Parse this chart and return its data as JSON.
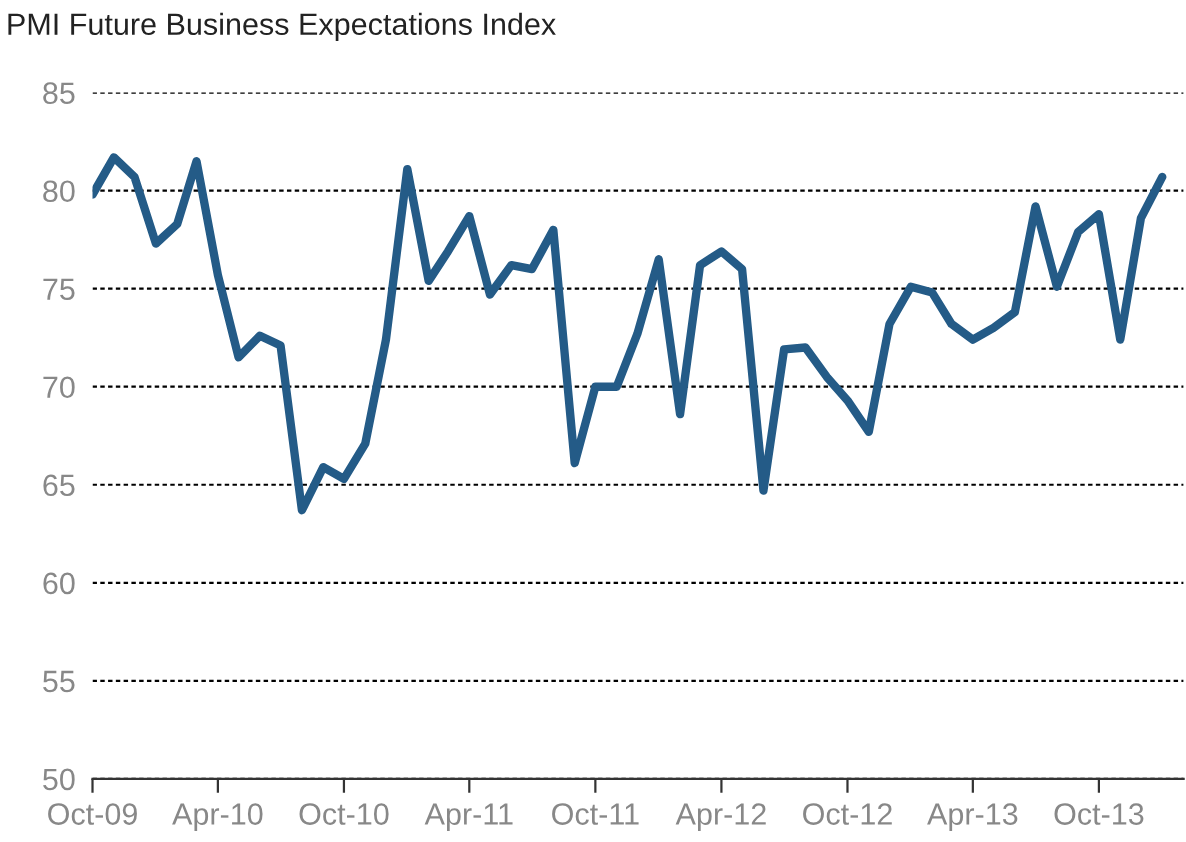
{
  "chart_data": {
    "type": "line",
    "title": "PMI Future Business Expectations Index",
    "x": [
      "2009-10",
      "2009-11",
      "2009-12",
      "2010-01",
      "2010-02",
      "2010-03",
      "2010-04",
      "2010-05",
      "2010-06",
      "2010-07",
      "2010-08",
      "2010-09",
      "2010-10",
      "2010-11",
      "2010-12",
      "2011-01",
      "2011-02",
      "2011-03",
      "2011-04",
      "2011-05",
      "2011-06",
      "2011-07",
      "2011-08",
      "2011-09",
      "2011-10",
      "2011-11",
      "2011-12",
      "2012-01",
      "2012-02",
      "2012-03",
      "2012-04",
      "2012-05",
      "2012-06",
      "2012-07",
      "2012-08",
      "2012-09",
      "2012-10",
      "2012-11",
      "2012-12",
      "2013-01",
      "2013-02",
      "2013-03",
      "2013-04",
      "2013-05",
      "2013-06",
      "2013-07",
      "2013-08",
      "2013-09",
      "2013-10",
      "2013-11",
      "2013-12",
      "2014-01"
    ],
    "series": [
      {
        "color": "#245b87",
        "values": [
          79.8,
          81.7,
          80.7,
          77.3,
          78.3,
          81.5,
          75.7,
          71.5,
          72.6,
          72.1,
          63.7,
          65.9,
          65.3,
          67.1,
          72.4,
          81.1,
          75.4,
          76.9,
          78.7,
          74.7,
          76.2,
          76.0,
          78.0,
          66.1,
          70.0,
          70.0,
          72.7,
          76.5,
          68.6,
          76.2,
          76.9,
          76.0,
          64.7,
          71.9,
          72.0,
          70.5,
          69.3,
          67.7,
          73.2,
          75.1,
          74.8,
          73.2,
          72.4,
          73.0,
          73.8,
          79.2,
          75.1,
          77.9,
          78.8,
          72.4,
          78.6,
          80.7
        ]
      }
    ],
    "xlim": [
      "2009-10",
      "2014-02"
    ],
    "xticks": [
      {
        "value": "2009-10",
        "label": "Oct-09"
      },
      {
        "value": "2010-04",
        "label": "Apr-10"
      },
      {
        "value": "2010-10",
        "label": "Oct-10"
      },
      {
        "value": "2011-04",
        "label": "Apr-11"
      },
      {
        "value": "2011-10",
        "label": "Oct-11"
      },
      {
        "value": "2012-04",
        "label": "Apr-12"
      },
      {
        "value": "2012-10",
        "label": "Oct-12"
      },
      {
        "value": "2013-04",
        "label": "Apr-13"
      },
      {
        "value": "2013-10",
        "label": "Oct-13"
      }
    ],
    "ylim": [
      50,
      85
    ],
    "yticks": [
      50,
      55,
      60,
      65,
      70,
      75,
      80,
      85
    ],
    "grid": "y",
    "legend": false
  }
}
